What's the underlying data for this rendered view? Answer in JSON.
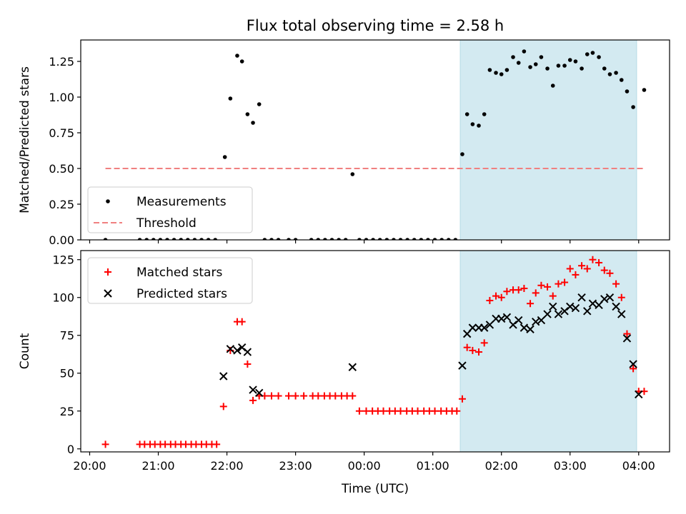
{
  "chart_data": {
    "type": "scatter",
    "title": "Flux total observing time = 2.58 h",
    "xlabel": "Time (UTC)",
    "x_ticks": [
      "20:00",
      "21:00",
      "22:00",
      "23:00",
      "00:00",
      "01:00",
      "02:00",
      "03:00",
      "04:00"
    ],
    "x_tick_hours": [
      20,
      21,
      22,
      23,
      24,
      25,
      26,
      27,
      28
    ],
    "xlim_hours": [
      19.87,
      28.45
    ],
    "shaded_interval_hours": [
      25.4,
      27.97
    ],
    "shade_color": "#d3eaf1",
    "panels": [
      {
        "ylabel": "Matched/Predicted stars",
        "ylim": [
          0,
          1.4
        ],
        "y_ticks": [
          0.0,
          0.25,
          0.5,
          0.75,
          1.0,
          1.25
        ],
        "y_tick_labels": [
          "0.00",
          "0.25",
          "0.50",
          "0.75",
          "1.00",
          "1.25"
        ],
        "legend": {
          "position": "lower-left",
          "entries": [
            "Measurements",
            "Threshold"
          ]
        },
        "series": [
          {
            "name": "Measurements",
            "marker": "dot",
            "color": "#000000",
            "x": [
              20.23,
              20.73,
              20.83,
              20.93,
              21.03,
              21.13,
              21.23,
              21.33,
              21.43,
              21.53,
              21.63,
              21.73,
              21.83,
              21.97,
              22.05,
              22.15,
              22.22,
              22.3,
              22.38,
              22.47,
              22.55,
              22.65,
              22.75,
              22.9,
              23.0,
              23.23,
              23.33,
              23.43,
              23.53,
              23.63,
              23.73,
              23.83,
              23.93,
              24.03,
              24.13,
              24.23,
              24.33,
              24.43,
              24.53,
              24.63,
              24.73,
              24.83,
              24.93,
              25.03,
              25.13,
              25.23,
              25.33,
              25.43,
              25.5,
              25.58,
              25.67,
              25.75,
              25.83,
              25.92,
              26.0,
              26.08,
              26.17,
              26.25,
              26.33,
              26.42,
              26.5,
              26.58,
              26.67,
              26.75,
              26.83,
              26.92,
              27.0,
              27.08,
              27.17,
              27.25,
              27.33,
              27.42,
              27.5,
              27.58,
              27.67,
              27.75,
              27.83,
              27.92,
              28.08
            ],
            "y": [
              0,
              0,
              0,
              0,
              0,
              0,
              0,
              0,
              0,
              0,
              0,
              0,
              0,
              0.58,
              0.99,
              1.29,
              1.25,
              0.88,
              0.82,
              0.95,
              0,
              0,
              0,
              0,
              0,
              0,
              0,
              0,
              0,
              0,
              0,
              0.46,
              0,
              0,
              0,
              0,
              0,
              0,
              0,
              0,
              0,
              0,
              0,
              0,
              0,
              0,
              0,
              0.6,
              0.88,
              0.81,
              0.8,
              0.88,
              1.19,
              1.17,
              1.16,
              1.19,
              1.28,
              1.24,
              1.32,
              1.21,
              1.23,
              1.28,
              1.2,
              1.08,
              1.22,
              1.22,
              1.26,
              1.25,
              1.2,
              1.3,
              1.31,
              1.28,
              1.2,
              1.16,
              1.17,
              1.12,
              1.04,
              0.93,
              1.05
            ]
          },
          {
            "name": "Threshold",
            "marker": "dashed-line",
            "color": "#f08080",
            "x": [
              20.23,
              28.08
            ],
            "y": [
              0.5,
              0.5
            ]
          }
        ]
      },
      {
        "ylabel": "Count",
        "ylim": [
          -2,
          131
        ],
        "y_ticks": [
          0,
          25,
          50,
          75,
          100,
          125
        ],
        "y_tick_labels": [
          "0",
          "25",
          "50",
          "75",
          "100",
          "125"
        ],
        "legend": {
          "position": "upper-left",
          "entries": [
            "Matched stars",
            "Predicted stars"
          ]
        },
        "series": [
          {
            "name": "Matched stars",
            "marker": "plus",
            "color": "#ff0000",
            "x": [
              20.23,
              20.73,
              20.8,
              20.88,
              20.95,
              21.03,
              21.1,
              21.18,
              21.25,
              21.33,
              21.4,
              21.48,
              21.55,
              21.63,
              21.7,
              21.78,
              21.85,
              21.95,
              22.05,
              22.15,
              22.22,
              22.3,
              22.38,
              22.47,
              22.55,
              22.65,
              22.75,
              22.9,
              23.0,
              23.12,
              23.25,
              23.33,
              23.42,
              23.5,
              23.58,
              23.67,
              23.75,
              23.83,
              23.93,
              24.03,
              24.12,
              24.2,
              24.28,
              24.37,
              24.45,
              24.53,
              24.62,
              24.7,
              24.78,
              24.87,
              24.95,
              25.03,
              25.12,
              25.2,
              25.28,
              25.35,
              25.43,
              25.5,
              25.58,
              25.67,
              25.75,
              25.83,
              25.92,
              26.0,
              26.08,
              26.17,
              26.25,
              26.33,
              26.42,
              26.5,
              26.58,
              26.67,
              26.75,
              26.83,
              26.92,
              27.0,
              27.08,
              27.17,
              27.25,
              27.33,
              27.42,
              27.5,
              27.58,
              27.67,
              27.75,
              27.83,
              27.92,
              28.0,
              28.08
            ],
            "y": [
              3,
              3,
              3,
              3,
              3,
              3,
              3,
              3,
              3,
              3,
              3,
              3,
              3,
              3,
              3,
              3,
              3,
              28,
              65,
              84,
              84,
              56,
              32,
              35,
              35,
              35,
              35,
              35,
              35,
              35,
              35,
              35,
              35,
              35,
              35,
              35,
              35,
              35,
              25,
              25,
              25,
              25,
              25,
              25,
              25,
              25,
              25,
              25,
              25,
              25,
              25,
              25,
              25,
              25,
              25,
              25,
              33,
              67,
              65,
              64,
              70,
              98,
              101,
              100,
              104,
              105,
              105,
              106,
              96,
              103,
              108,
              107,
              101,
              109,
              110,
              119,
              115,
              121,
              119,
              125,
              123,
              118,
              116,
              109,
              100,
              76,
              53,
              38,
              38
            ]
          },
          {
            "name": "Predicted stars",
            "marker": "x",
            "color": "#000000",
            "x": [
              21.95,
              22.05,
              22.15,
              22.22,
              22.3,
              22.38,
              22.47,
              23.83,
              25.43,
              25.5,
              25.58,
              25.67,
              25.75,
              25.83,
              25.92,
              26.0,
              26.08,
              26.17,
              26.25,
              26.33,
              26.42,
              26.5,
              26.58,
              26.67,
              26.75,
              26.83,
              26.92,
              27.0,
              27.08,
              27.17,
              27.25,
              27.33,
              27.42,
              27.5,
              27.58,
              27.67,
              27.75,
              27.83,
              27.92,
              28.0
            ],
            "y": [
              48,
              66,
              65,
              67,
              64,
              39,
              37,
              54,
              55,
              76,
              80,
              80,
              80,
              82,
              86,
              86,
              87,
              82,
              85,
              80,
              79,
              84,
              85,
              89,
              94,
              89,
              91,
              94,
              93,
              100,
              91,
              96,
              95,
              99,
              100,
              94,
              89,
              73,
              56,
              36
            ]
          }
        ]
      }
    ]
  }
}
